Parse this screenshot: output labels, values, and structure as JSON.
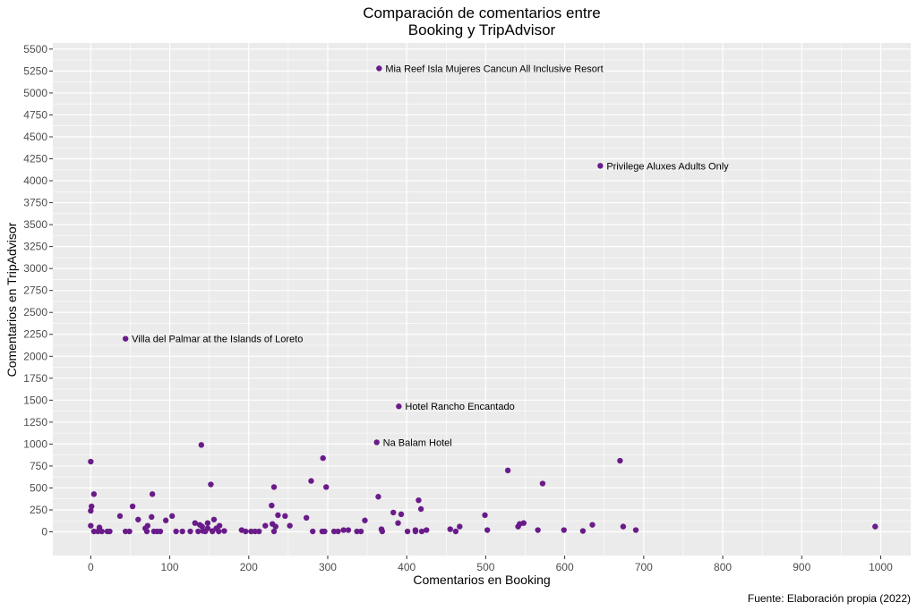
{
  "chart_data": {
    "type": "scatter",
    "title_lines": [
      "Comparación de comentarios entre",
      "Booking y TripAdvisor"
    ],
    "xlabel": "Comentarios en Booking",
    "ylabel": "Comentarios en TripAdvisor",
    "caption": "Fuente: Elaboración propia (2022)",
    "xlim": [
      -48,
      1038
    ],
    "ylim": [
      -270,
      5570
    ],
    "x_ticks": [
      0,
      100,
      200,
      300,
      400,
      500,
      600,
      700,
      800,
      900,
      1000
    ],
    "x_tick_labels": [
      "0",
      "100",
      "200",
      "300",
      "400",
      "500",
      "600",
      "700",
      "800",
      "900",
      "1000"
    ],
    "y_ticks": [
      0,
      250,
      500,
      750,
      1000,
      1250,
      1500,
      1750,
      2000,
      2250,
      2500,
      2750,
      3000,
      3250,
      3500,
      3750,
      4000,
      4250,
      4500,
      4750,
      5000,
      5250,
      5500
    ],
    "y_tick_labels": [
      "0",
      "250",
      "500",
      "750",
      "1000",
      "1250",
      "1500",
      "1750",
      "2000",
      "2250",
      "2500",
      "2750",
      "3000",
      "3250",
      "3500",
      "3750",
      "4000",
      "4250",
      "4500",
      "4750",
      "5000",
      "5250",
      "5500"
    ],
    "grid": true,
    "point_color": "#6a1b8a",
    "panel_color": "#ebebeb",
    "grid_color": "#ffffff",
    "annotations": [
      {
        "x": 365,
        "y": 5280,
        "label": "Mia Reef Isla Mujeres Cancun All Inclusive Resort"
      },
      {
        "x": 645,
        "y": 4170,
        "label": "Privilege Aluxes Adults Only"
      },
      {
        "x": 44,
        "y": 2200,
        "label": "Villa del Palmar at the Islands of Loreto"
      },
      {
        "x": 390,
        "y": 1430,
        "label": "Hotel Rancho Encantado"
      },
      {
        "x": 362,
        "y": 1020,
        "label": "Na Balam Hotel"
      }
    ],
    "points": [
      [
        365,
        5280
      ],
      [
        645,
        4170
      ],
      [
        44,
        2200
      ],
      [
        390,
        1430
      ],
      [
        362,
        1020
      ],
      [
        140,
        990
      ],
      [
        0,
        800
      ],
      [
        294,
        840
      ],
      [
        670,
        810
      ],
      [
        528,
        700
      ],
      [
        279,
        580
      ],
      [
        152,
        540
      ],
      [
        572,
        550
      ],
      [
        232,
        510
      ],
      [
        298,
        510
      ],
      [
        4,
        430
      ],
      [
        78,
        430
      ],
      [
        364,
        400
      ],
      [
        415,
        360
      ],
      [
        1,
        290
      ],
      [
        53,
        290
      ],
      [
        229,
        300
      ],
      [
        418,
        260
      ],
      [
        0,
        240
      ],
      [
        383,
        220
      ],
      [
        393,
        200
      ],
      [
        499,
        190
      ],
      [
        237,
        190
      ],
      [
        246,
        180
      ],
      [
        37,
        180
      ],
      [
        77,
        170
      ],
      [
        103,
        180
      ],
      [
        273,
        160
      ],
      [
        60,
        140
      ],
      [
        95,
        130
      ],
      [
        156,
        140
      ],
      [
        347,
        130
      ],
      [
        132,
        100
      ],
      [
        148,
        100
      ],
      [
        389,
        100
      ],
      [
        548,
        100
      ],
      [
        543,
        90
      ],
      [
        230,
        90
      ],
      [
        138,
        80
      ],
      [
        0,
        70
      ],
      [
        72,
        70
      ],
      [
        163,
        70
      ],
      [
        221,
        70
      ],
      [
        252,
        70
      ],
      [
        141,
        60
      ],
      [
        234,
        60
      ],
      [
        635,
        80
      ],
      [
        541,
        60
      ],
      [
        674,
        60
      ],
      [
        993,
        60
      ],
      [
        467,
        60
      ],
      [
        11,
        50
      ],
      [
        69,
        40
      ],
      [
        148,
        40
      ],
      [
        159,
        40
      ],
      [
        455,
        30
      ],
      [
        368,
        30
      ],
      [
        425,
        20
      ],
      [
        191,
        20
      ],
      [
        411,
        20
      ],
      [
        320,
        20
      ],
      [
        326,
        20
      ],
      [
        502,
        20
      ],
      [
        566,
        20
      ],
      [
        599,
        20
      ],
      [
        690,
        20
      ],
      [
        623,
        10
      ],
      [
        169,
        10
      ],
      [
        142,
        10
      ],
      [
        154,
        10
      ],
      [
        4,
        5
      ],
      [
        9,
        5
      ],
      [
        14,
        5
      ],
      [
        21,
        5
      ],
      [
        24,
        5
      ],
      [
        44,
        5
      ],
      [
        49,
        5
      ],
      [
        71,
        5
      ],
      [
        84,
        5
      ],
      [
        88,
        5
      ],
      [
        108,
        5
      ],
      [
        116,
        5
      ],
      [
        126,
        5
      ],
      [
        136,
        5
      ],
      [
        145,
        5
      ],
      [
        154,
        5
      ],
      [
        196,
        5
      ],
      [
        203,
        5
      ],
      [
        208,
        5
      ],
      [
        213,
        5
      ],
      [
        232,
        5
      ],
      [
        281,
        5
      ],
      [
        293,
        5
      ],
      [
        296,
        5
      ],
      [
        308,
        5
      ],
      [
        313,
        5
      ],
      [
        337,
        5
      ],
      [
        342,
        5
      ],
      [
        369,
        5
      ],
      [
        401,
        5
      ],
      [
        411,
        5
      ],
      [
        419,
        5
      ],
      [
        462,
        5
      ],
      [
        80,
        5
      ],
      [
        162,
        5
      ]
    ]
  }
}
